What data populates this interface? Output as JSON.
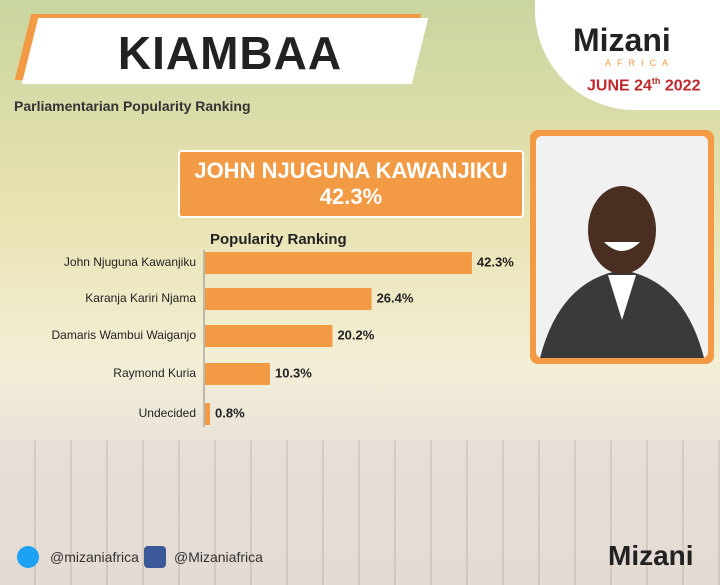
{
  "header": {
    "title": "KIAMBAA",
    "subtitle": "Parliamentarian Popularity Ranking"
  },
  "brand": {
    "name": "Mizani",
    "region": "AFRICA",
    "date_main": "JUNE 24",
    "date_suffix": "th",
    "date_year": "2022"
  },
  "highlight": {
    "name": "JOHN NJUGUNA KAWANJIKU",
    "share": "42.3%"
  },
  "chart_data": {
    "type": "bar",
    "orientation": "horizontal",
    "title": "Popularity Ranking",
    "categories": [
      "John Njuguna Kawanjiku",
      "Karanja Kariri Njama",
      "Damaris Wambui Waiganjo",
      "Raymond Kuria",
      "Undecided"
    ],
    "values": [
      42.3,
      26.4,
      20.2,
      10.3,
      0.8
    ],
    "value_labels": [
      "42.3%",
      "26.4%",
      "20.2%",
      "10.3%",
      "0.8%"
    ],
    "color": "#f39a45"
  },
  "footer": {
    "twitter": "@mizaniafrica",
    "facebook": "@Mizaniafrica"
  }
}
